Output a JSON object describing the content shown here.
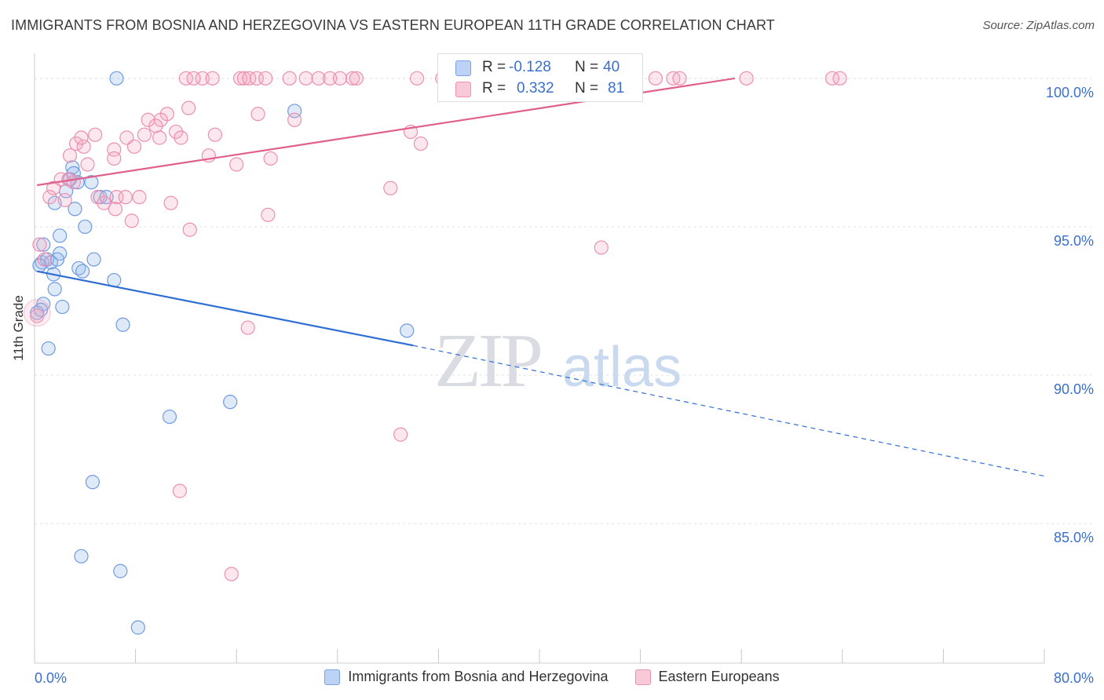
{
  "title": "IMMIGRANTS FROM BOSNIA AND HERZEGOVINA VS EASTERN EUROPEAN 11TH GRADE CORRELATION CHART",
  "source": "Source: ZipAtlas.com",
  "watermark": {
    "zip": "ZIP",
    "atlas": "atlas"
  },
  "legend_box": {
    "r_label": "R =",
    "n_label": "N =",
    "rows": [
      {
        "name": "Immigrants from Bosnia and Herzegovina",
        "r": "-0.128",
        "n": "40",
        "color": "#7aa3e0"
      },
      {
        "name": "Eastern Europeans",
        "r": "0.332",
        "n": "81",
        "color": "#eb93b1"
      }
    ]
  },
  "chart_data": {
    "type": "scatter",
    "title": "IMMIGRANTS FROM BOSNIA AND HERZEGOVINA VS EASTERN EUROPEAN 11TH GRADE CORRELATION CHART",
    "xlabel": "",
    "ylabel": "11th Grade",
    "xlim": [
      0,
      80
    ],
    "ylim": [
      80.3,
      101.0
    ],
    "x_tick_labels": [
      "0.0%",
      "80.0%"
    ],
    "y_tick_labels": [
      "100.0%",
      "95.0%",
      "90.0%",
      "85.0%"
    ],
    "y_ticks": [
      100,
      95,
      90,
      85
    ],
    "x_minor_ticks": [
      0,
      8,
      16,
      24,
      32,
      40,
      48,
      56,
      64,
      72,
      80
    ],
    "grid": true,
    "legend": "bottom-center",
    "series": [
      {
        "name": "Immigrants from Bosnia and Herzegovina",
        "color": "#6f9be0",
        "trend": {
          "x0": 0.2,
          "y0": 93.5,
          "x1": 30.0,
          "y1": 91.0,
          "dash_to_x": 80.0,
          "dash_to_y": 86.6
        },
        "points": [
          [
            6.5,
            100.0
          ],
          [
            20.6,
            98.9
          ],
          [
            3.0,
            97.0
          ],
          [
            3.1,
            96.8
          ],
          [
            3.4,
            96.5
          ],
          [
            4.5,
            96.5
          ],
          [
            2.5,
            96.2
          ],
          [
            1.6,
            95.8
          ],
          [
            3.2,
            95.6
          ],
          [
            5.2,
            96.0
          ],
          [
            5.7,
            96.0
          ],
          [
            4.0,
            95.0
          ],
          [
            2.0,
            94.7
          ],
          [
            0.7,
            94.4
          ],
          [
            2.0,
            94.1
          ],
          [
            0.6,
            93.8
          ],
          [
            1.0,
            93.9
          ],
          [
            1.3,
            93.8
          ],
          [
            4.7,
            93.9
          ],
          [
            3.5,
            93.6
          ],
          [
            3.8,
            93.5
          ],
          [
            1.5,
            93.4
          ],
          [
            6.3,
            93.2
          ],
          [
            1.6,
            92.9
          ],
          [
            0.7,
            92.4
          ],
          [
            2.2,
            92.3
          ],
          [
            0.2,
            92.1
          ],
          [
            7.0,
            91.7
          ],
          [
            29.5,
            91.5
          ],
          [
            1.1,
            90.9
          ],
          [
            15.5,
            89.1
          ],
          [
            10.7,
            88.6
          ],
          [
            4.6,
            86.4
          ],
          [
            3.7,
            83.9
          ],
          [
            6.8,
            83.4
          ],
          [
            8.2,
            81.5
          ],
          [
            0.4,
            93.7
          ],
          [
            2.8,
            96.6
          ],
          [
            0.5,
            92.2
          ],
          [
            1.8,
            93.9
          ]
        ]
      },
      {
        "name": "Eastern Europeans",
        "color": "#ec8fb0",
        "trend": {
          "x0": 0.2,
          "y0": 96.4,
          "x1": 55.5,
          "y1": 100.0
        },
        "points": [
          [
            12.0,
            100.0
          ],
          [
            13.3,
            100.0
          ],
          [
            14.1,
            100.0
          ],
          [
            16.3,
            100.0
          ],
          [
            16.6,
            100.0
          ],
          [
            17.0,
            100.0
          ],
          [
            17.6,
            100.0
          ],
          [
            18.3,
            100.0
          ],
          [
            20.2,
            100.0
          ],
          [
            21.5,
            100.0
          ],
          [
            22.5,
            100.0
          ],
          [
            23.4,
            100.0
          ],
          [
            25.2,
            100.0
          ],
          [
            25.5,
            100.0
          ],
          [
            30.3,
            100.0
          ],
          [
            32.3,
            100.0
          ],
          [
            35.4,
            100.0
          ],
          [
            37.2,
            100.0
          ],
          [
            38.5,
            100.0
          ],
          [
            40.2,
            100.0
          ],
          [
            41.0,
            100.0
          ],
          [
            49.2,
            100.0
          ],
          [
            50.6,
            100.0
          ],
          [
            51.1,
            100.0
          ],
          [
            56.4,
            100.0
          ],
          [
            63.2,
            100.0
          ],
          [
            63.8,
            100.0
          ],
          [
            12.2,
            99.0
          ],
          [
            17.7,
            98.8
          ],
          [
            20.6,
            98.6
          ],
          [
            10.5,
            98.8
          ],
          [
            10.0,
            98.6
          ],
          [
            9.0,
            98.6
          ],
          [
            9.6,
            98.4
          ],
          [
            11.2,
            98.2
          ],
          [
            8.7,
            98.1
          ],
          [
            7.3,
            98.0
          ],
          [
            9.9,
            98.0
          ],
          [
            11.6,
            98.0
          ],
          [
            14.3,
            98.1
          ],
          [
            4.8,
            98.1
          ],
          [
            3.3,
            97.8
          ],
          [
            3.9,
            97.7
          ],
          [
            6.3,
            97.6
          ],
          [
            7.9,
            97.7
          ],
          [
            2.8,
            97.4
          ],
          [
            6.3,
            97.3
          ],
          [
            13.8,
            97.4
          ],
          [
            18.7,
            97.3
          ],
          [
            16.0,
            97.1
          ],
          [
            4.2,
            97.1
          ],
          [
            2.1,
            96.6
          ],
          [
            2.7,
            96.6
          ],
          [
            1.5,
            96.3
          ],
          [
            3.1,
            96.5
          ],
          [
            1.2,
            96.0
          ],
          [
            2.4,
            95.9
          ],
          [
            5.0,
            96.0
          ],
          [
            6.5,
            96.0
          ],
          [
            7.2,
            96.0
          ],
          [
            10.8,
            95.8
          ],
          [
            5.5,
            95.8
          ],
          [
            6.4,
            95.6
          ],
          [
            18.5,
            95.4
          ],
          [
            7.7,
            95.2
          ],
          [
            12.3,
            94.9
          ],
          [
            28.2,
            96.3
          ],
          [
            29.8,
            98.2
          ],
          [
            30.6,
            97.8
          ],
          [
            44.9,
            94.3
          ],
          [
            0.4,
            94.4
          ],
          [
            0.8,
            93.9
          ],
          [
            16.9,
            91.6
          ],
          [
            29.0,
            88.0
          ],
          [
            11.5,
            86.1
          ],
          [
            15.6,
            83.3
          ],
          [
            0.2,
            92.0
          ],
          [
            12.6,
            100.0
          ],
          [
            24.2,
            100.0
          ],
          [
            3.7,
            98.0
          ],
          [
            8.3,
            96.0
          ]
        ]
      }
    ]
  }
}
